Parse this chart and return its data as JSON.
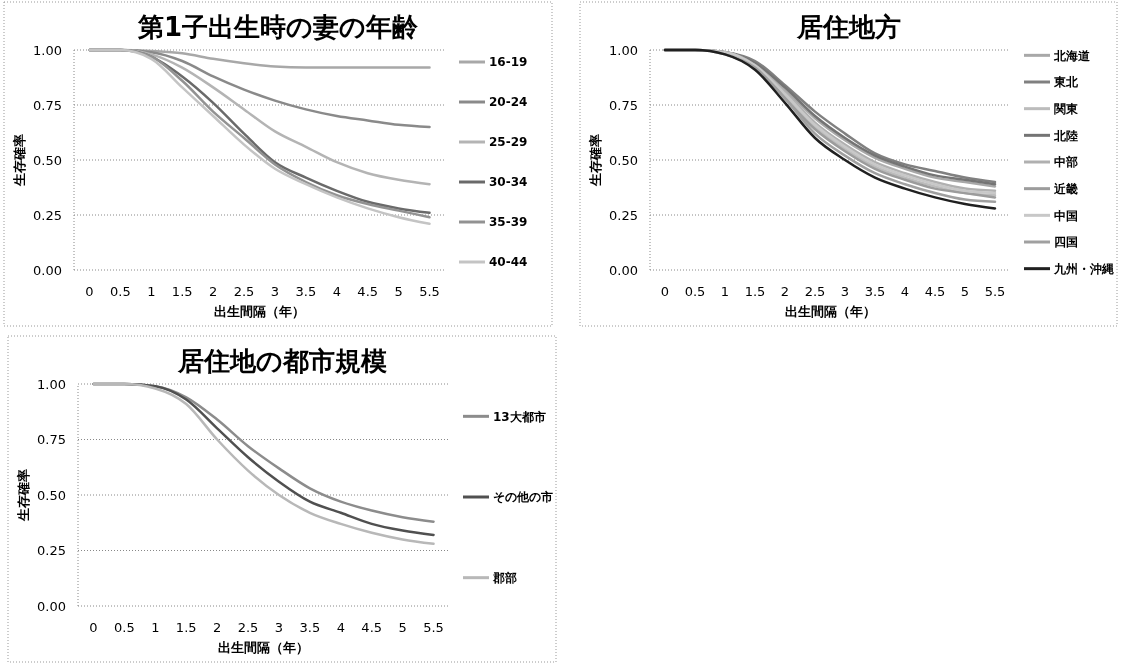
{
  "chart_data": [
    {
      "type": "line",
      "title": "第1子出生時の妻の年齢",
      "xlabel": "出生間隔（年）",
      "ylabel": "生存確率",
      "categories": [
        "0",
        "0.5",
        "1",
        "1.5",
        "2",
        "2.5",
        "3",
        "3.5",
        "4",
        "4.5",
        "5",
        "5.5"
      ],
      "ylim": [
        0,
        1
      ],
      "yticks": [
        {
          "value": 0,
          "label": "0.00"
        },
        {
          "value": 0.25,
          "label": "0.25"
        },
        {
          "value": 0.5,
          "label": "0.50"
        },
        {
          "value": 0.75,
          "label": "0.75"
        },
        {
          "value": 1,
          "label": "1.00"
        }
      ],
      "grid": "y",
      "legend": "right",
      "series": [
        {
          "name": "16-19",
          "color": "#a8a8a8",
          "values": [
            1,
            1,
            0.995,
            0.985,
            0.96,
            0.94,
            0.925,
            0.92,
            0.92,
            0.92,
            0.92,
            0.92
          ]
        },
        {
          "name": "20-24",
          "color": "#8a8a8a",
          "values": [
            1,
            1,
            0.99,
            0.95,
            0.88,
            0.82,
            0.77,
            0.73,
            0.7,
            0.68,
            0.66,
            0.65
          ]
        },
        {
          "name": "25-29",
          "color": "#b4b4b4",
          "values": [
            1,
            1,
            0.98,
            0.92,
            0.83,
            0.73,
            0.63,
            0.56,
            0.49,
            0.44,
            0.41,
            0.39
          ]
        },
        {
          "name": "30-34",
          "color": "#6a6a6a",
          "values": [
            1,
            1,
            0.97,
            0.88,
            0.76,
            0.62,
            0.49,
            0.42,
            0.36,
            0.31,
            0.28,
            0.26
          ]
        },
        {
          "name": "35-39",
          "color": "#929292",
          "values": [
            1,
            1,
            0.97,
            0.86,
            0.72,
            0.6,
            0.48,
            0.4,
            0.34,
            0.3,
            0.27,
            0.24
          ]
        },
        {
          "name": "40-44",
          "color": "#c4c4c4",
          "values": [
            1,
            1,
            0.96,
            0.83,
            0.7,
            0.57,
            0.46,
            0.39,
            0.33,
            0.28,
            0.24,
            0.21
          ]
        }
      ]
    },
    {
      "type": "line",
      "title": "居住地方",
      "xlabel": "出生間隔（年）",
      "ylabel": "生存確率",
      "categories": [
        "0",
        "0.5",
        "1",
        "1.5",
        "2",
        "2.5",
        "3",
        "3.5",
        "4",
        "4.5",
        "5",
        "5.5"
      ],
      "ylim": [
        0,
        1
      ],
      "yticks": [
        {
          "value": 0,
          "label": "0.00"
        },
        {
          "value": 0.25,
          "label": "0.25"
        },
        {
          "value": 0.5,
          "label": "0.50"
        },
        {
          "value": 0.75,
          "label": "0.75"
        },
        {
          "value": 1,
          "label": "1.00"
        }
      ],
      "grid": "y",
      "legend": "right",
      "series": [
        {
          "name": "北海道",
          "color": "#a8a8a8",
          "values": [
            1,
            1,
            0.99,
            0.94,
            0.82,
            0.69,
            0.59,
            0.51,
            0.46,
            0.42,
            0.4,
            0.38
          ]
        },
        {
          "name": "東北",
          "color": "#808080",
          "values": [
            1,
            1,
            0.99,
            0.95,
            0.84,
            0.72,
            0.62,
            0.53,
            0.48,
            0.45,
            0.42,
            0.4
          ]
        },
        {
          "name": "関東",
          "color": "#bcbcbc",
          "values": [
            1,
            1,
            0.99,
            0.93,
            0.79,
            0.65,
            0.55,
            0.47,
            0.42,
            0.38,
            0.35,
            0.34
          ]
        },
        {
          "name": "北陸",
          "color": "#747474",
          "values": [
            1,
            1,
            0.99,
            0.94,
            0.83,
            0.7,
            0.6,
            0.52,
            0.47,
            0.43,
            0.41,
            0.39
          ]
        },
        {
          "name": "中部",
          "color": "#b0b0b0",
          "values": [
            1,
            1,
            0.99,
            0.93,
            0.81,
            0.67,
            0.57,
            0.49,
            0.44,
            0.4,
            0.37,
            0.36
          ]
        },
        {
          "name": "近畿",
          "color": "#9c9c9c",
          "values": [
            1,
            1,
            0.99,
            0.93,
            0.78,
            0.64,
            0.54,
            0.46,
            0.41,
            0.37,
            0.35,
            0.33
          ]
        },
        {
          "name": "中国",
          "color": "#c8c8c8",
          "values": [
            1,
            1,
            0.99,
            0.93,
            0.8,
            0.66,
            0.56,
            0.48,
            0.43,
            0.39,
            0.36,
            0.35
          ]
        },
        {
          "name": "四国",
          "color": "#a0a0a0",
          "values": [
            1,
            1,
            0.98,
            0.92,
            0.78,
            0.62,
            0.52,
            0.44,
            0.39,
            0.35,
            0.32,
            0.31
          ]
        },
        {
          "name": "九州・沖縄",
          "color": "#202020",
          "values": [
            1,
            1,
            0.98,
            0.91,
            0.76,
            0.6,
            0.5,
            0.42,
            0.37,
            0.33,
            0.3,
            0.28
          ]
        }
      ]
    },
    {
      "type": "line",
      "title": "居住地の都市規模",
      "xlabel": "出生間隔（年）",
      "ylabel": "生存確率",
      "categories": [
        "0",
        "0.5",
        "1",
        "1.5",
        "2",
        "2.5",
        "3",
        "3.5",
        "4",
        "4.5",
        "5",
        "5.5"
      ],
      "ylim": [
        0,
        1
      ],
      "yticks": [
        {
          "value": 0,
          "label": "0.00"
        },
        {
          "value": 0.25,
          "label": "0.25"
        },
        {
          "value": 0.5,
          "label": "0.50"
        },
        {
          "value": 0.75,
          "label": "0.75"
        },
        {
          "value": 1,
          "label": "1.00"
        }
      ],
      "grid": "y",
      "legend": "right",
      "series": [
        {
          "name": "13大都市",
          "color": "#8c8c8c",
          "values": [
            1,
            1,
            0.99,
            0.94,
            0.84,
            0.72,
            0.62,
            0.53,
            0.47,
            0.43,
            0.4,
            0.38
          ]
        },
        {
          "name": "その他の市",
          "color": "#505050",
          "values": [
            1,
            1,
            0.99,
            0.93,
            0.8,
            0.67,
            0.56,
            0.47,
            0.42,
            0.37,
            0.34,
            0.32
          ]
        },
        {
          "name": "郡部",
          "color": "#b8b8b8",
          "values": [
            1,
            1,
            0.98,
            0.91,
            0.75,
            0.61,
            0.5,
            0.42,
            0.37,
            0.33,
            0.3,
            0.28
          ]
        }
      ]
    }
  ]
}
